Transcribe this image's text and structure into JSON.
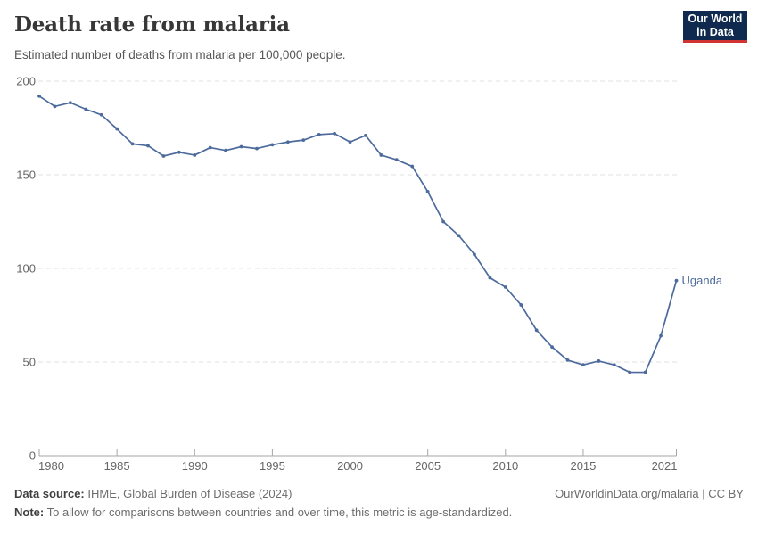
{
  "header": {
    "title": "Death rate from malaria",
    "subtitle": "Estimated number of deaths from malaria per 100,000 people."
  },
  "logo": {
    "line1": "Our World",
    "line2": "in Data",
    "bg_color": "#0f2a4e",
    "accent_color": "#cf3332"
  },
  "chart_data": {
    "type": "line",
    "title": "Death rate from malaria",
    "subtitle": "Estimated number of deaths from malaria per 100,000 people.",
    "xlabel": "",
    "ylabel": "",
    "xlim": [
      1980,
      2021
    ],
    "ylim": [
      0,
      200
    ],
    "x_ticks": [
      1980,
      1985,
      1990,
      1995,
      2000,
      2005,
      2010,
      2015,
      2021
    ],
    "y_ticks": [
      0,
      50,
      100,
      150,
      200
    ],
    "grid": "dashed-horizontal-gridlines",
    "legend_position": "end-of-line-label",
    "series": [
      {
        "name": "Uganda",
        "color": "#4C6A9C",
        "x": [
          1980,
          1981,
          1982,
          1983,
          1984,
          1985,
          1986,
          1987,
          1988,
          1989,
          1990,
          1991,
          1992,
          1993,
          1994,
          1995,
          1996,
          1997,
          1998,
          1999,
          2000,
          2001,
          2002,
          2003,
          2004,
          2005,
          2006,
          2007,
          2008,
          2009,
          2010,
          2011,
          2012,
          2013,
          2014,
          2015,
          2016,
          2017,
          2018,
          2019,
          2020,
          2021
        ],
        "values": [
          192,
          186.5,
          188.5,
          185,
          182,
          174.5,
          166.5,
          165.5,
          160,
          162,
          160.5,
          164.5,
          163,
          165,
          164,
          166,
          167.5,
          168.5,
          171.5,
          172,
          167.5,
          171,
          160.5,
          158,
          154.5,
          141,
          125,
          117.5,
          107.5,
          95,
          90,
          80.5,
          67,
          58,
          51,
          48.5,
          50.5,
          48.5,
          44.5,
          44.5,
          64,
          93.5
        ]
      }
    ],
    "colors": {
      "line": "#4C6A9C",
      "gridline": "#e0e0e0",
      "axis": "#a6a6a6",
      "tick_label": "#666666"
    }
  },
  "footer": {
    "source_label": "Data source:",
    "source_text": " IHME, Global Burden of Disease (2024)",
    "note_label": "Note:",
    "note_text": " To allow for comparisons between countries and over time, this metric is age-standardized.",
    "link": "OurWorldinData.org/malaria | CC BY"
  }
}
